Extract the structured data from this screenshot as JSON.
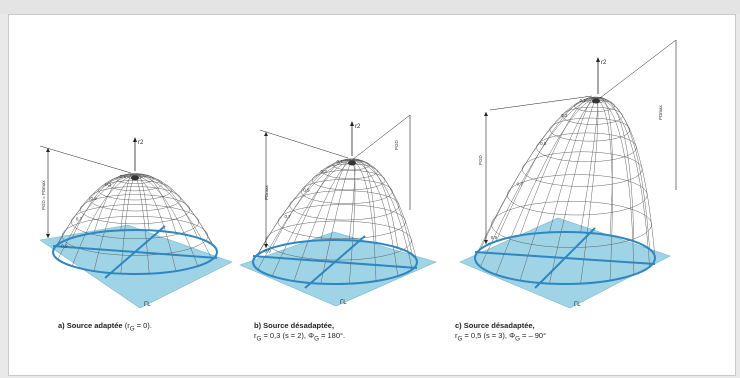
{
  "captions": {
    "a": {
      "title": "a) Source adaptée",
      "detail": "(r",
      "sub_index": "G",
      "tail": " = 0)."
    },
    "b": {
      "title": "b) Source désadaptée,",
      "detail": "r",
      "line2": "= 0,3 (s = 2), Φ",
      "line2_sub": "G",
      "line2_tail": " = 180°."
    },
    "c": {
      "title": "c) Source désadaptée,",
      "detail": "r",
      "line2": "= 0,5 (s = 3), Φ",
      "line2_sub": "G",
      "line2_tail": " = – 90°"
    }
  },
  "axis_labels": {
    "power_a": "r2",
    "power_b": "r2",
    "power_c": "r2",
    "pmax_a": "PGD = PDmax",
    "pmax_b": "PDmax",
    "pgd_b": "PGD",
    "pgd_c": "PGD",
    "pmax_c": "PDmax",
    "gamma": "ΓL"
  },
  "tick_labels": [
    "0,1",
    "0,2",
    "0,3",
    "0,4",
    "0,5",
    "0,6",
    "0,7",
    "0,8",
    "0,9"
  ],
  "colors": {
    "plane": "#9fd4e6",
    "plane_line": "#2f86c0",
    "mesh": "#555555",
    "leader": "#222222"
  }
}
